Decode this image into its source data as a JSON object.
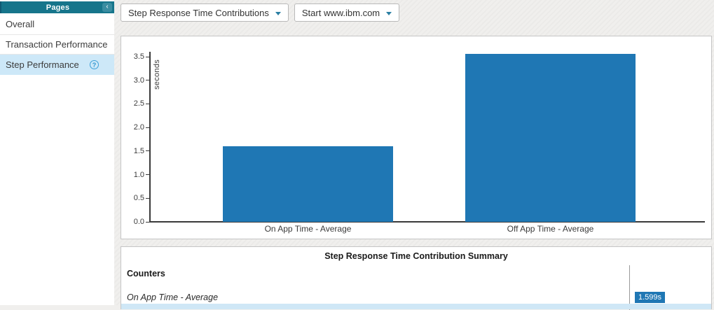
{
  "sidebar": {
    "header": {
      "title": "Pages",
      "collapse_glyph": "‹"
    },
    "items": [
      {
        "label": "Overall",
        "selected": false
      },
      {
        "label": "Transaction Performance",
        "selected": false
      },
      {
        "label": "Step Performance",
        "selected": true,
        "help_glyph": "?"
      }
    ]
  },
  "toolbar": {
    "report_dropdown_value": "Step Response Time Contributions",
    "scope_dropdown_value": "Start www.ibm.com"
  },
  "chart_data": {
    "type": "bar",
    "title": "",
    "ylabel": "seconds",
    "categories": [
      "On App Time - Average",
      "Off App Time - Average"
    ],
    "values": [
      1.599,
      3.56
    ],
    "yticks": [
      0.0,
      0.5,
      1.0,
      1.5,
      2.0,
      2.5,
      3.0,
      3.5
    ],
    "ylim": [
      0,
      3.6
    ],
    "bar_color": "#1f77b4",
    "grid": false,
    "legend": "none"
  },
  "summary": {
    "title": "Step Response Time Contribution Summary",
    "counters_label": "Counters",
    "rows": [
      {
        "label": "On App Time - Average",
        "value": "1.599s"
      }
    ]
  },
  "colors": {
    "accent_teal": "#16758b",
    "selected_item_bg": "#cde8f8",
    "bar_blue": "#1f77b4",
    "badge_blue": "#1f77b4",
    "panel_border": "#c5c5c5"
  }
}
